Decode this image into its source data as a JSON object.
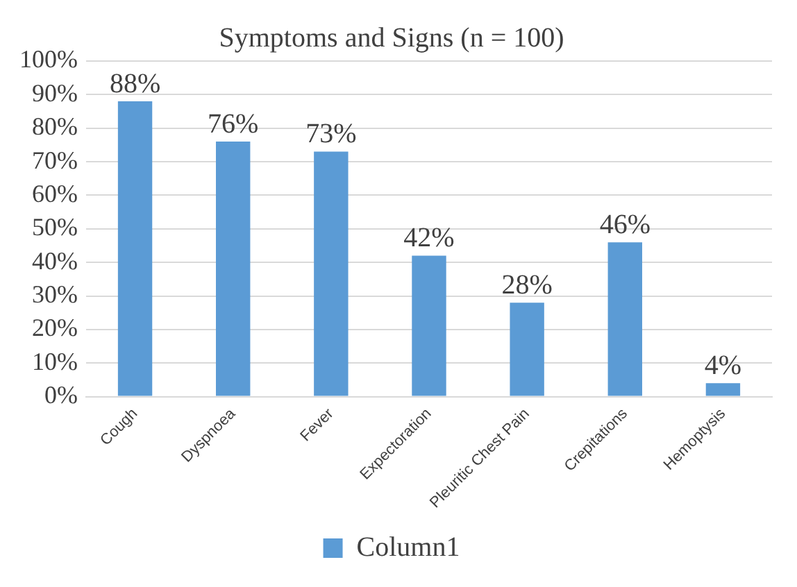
{
  "chart_data": {
    "type": "bar",
    "title": "Symptoms and Signs (n = 100)",
    "categories": [
      "Cough",
      "Dyspnoea",
      "Fever",
      "Expectoration",
      "Pleuritic Chest Pain",
      "Crepitations",
      "Hemoptysis"
    ],
    "series": [
      {
        "name": "Column1",
        "color": "#5b9bd5",
        "values": [
          88,
          76,
          73,
          42,
          28,
          46,
          4
        ]
      }
    ],
    "value_labels": [
      "88%",
      "76%",
      "73%",
      "42%",
      "28%",
      "46%",
      "4%"
    ],
    "ylim": [
      0,
      100
    ],
    "yticks": [
      {
        "value": 0,
        "label": "0%"
      },
      {
        "value": 10,
        "label": "10%"
      },
      {
        "value": 20,
        "label": "20%"
      },
      {
        "value": 30,
        "label": "30%"
      },
      {
        "value": 40,
        "label": "40%"
      },
      {
        "value": 50,
        "label": "50%"
      },
      {
        "value": 60,
        "label": "60%"
      },
      {
        "value": 70,
        "label": "70%"
      },
      {
        "value": 80,
        "label": "80%"
      },
      {
        "value": 90,
        "label": "90%"
      },
      {
        "value": 100,
        "label": "100%"
      }
    ],
    "grid": "y",
    "legend": "bottom"
  }
}
